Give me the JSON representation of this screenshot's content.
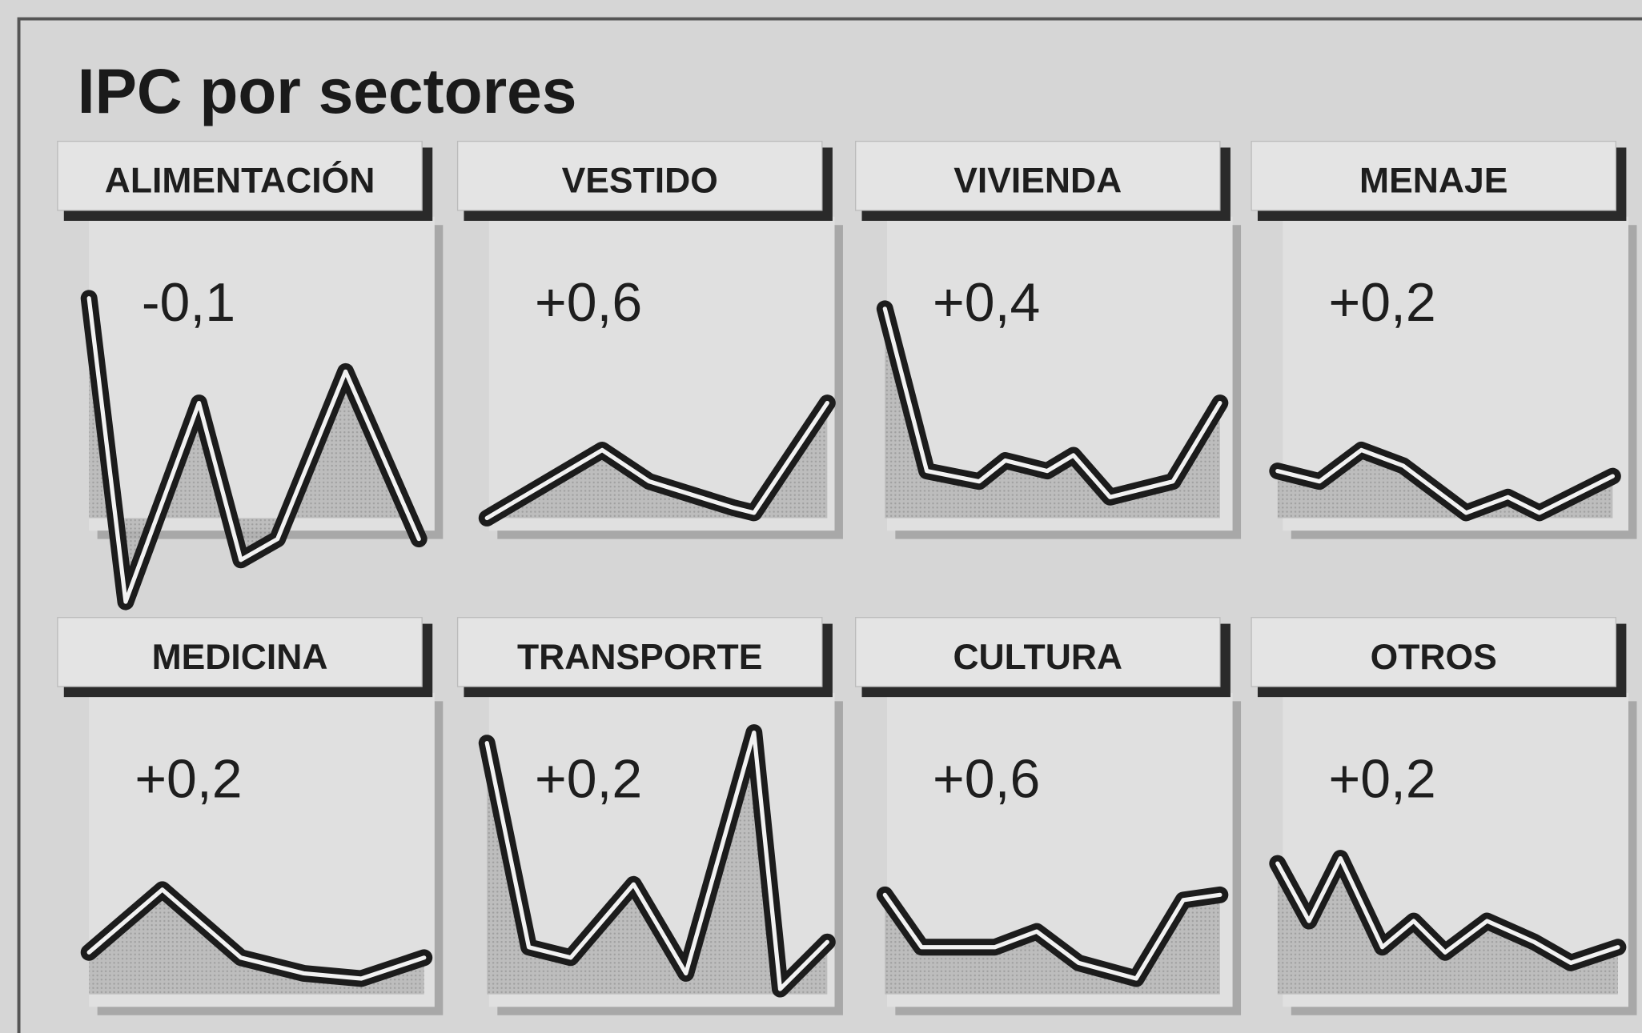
{
  "chart_data": {
    "type": "sparkline-grid",
    "title": "IPC por sectores",
    "categories": [
      "ALIMENTACIÓN",
      "VESTIDO",
      "VIVIENDA",
      "MENAJE",
      "MEDICINA",
      "TRANSPORTE",
      "CULTURA",
      "OTROS"
    ],
    "values": [
      -0.1,
      0.6,
      0.4,
      0.2,
      0.2,
      0.2,
      0.6,
      0.2
    ],
    "value_labels": [
      "-0,1",
      "+0,6",
      "+0,4",
      "+0,2",
      "+0,2",
      "+0,2",
      "+0,6",
      "+0,2"
    ]
  }
}
